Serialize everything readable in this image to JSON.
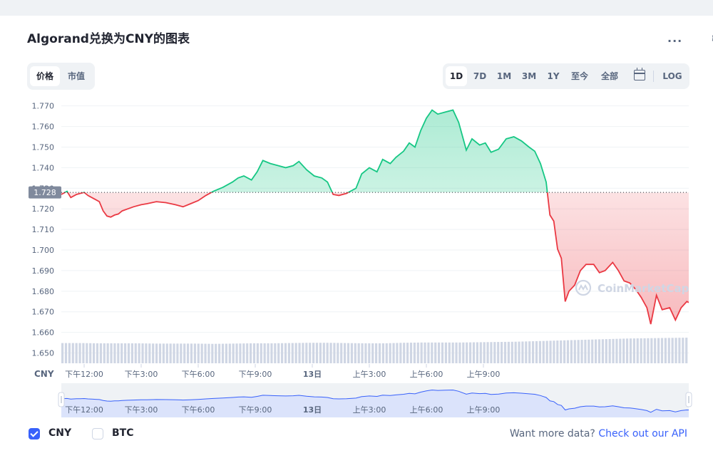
{
  "header": {
    "title": "Algorand兑换为CNY的图表",
    "more_label": "..."
  },
  "toggle": {
    "price_label": "价格",
    "mcap_label": "市值"
  },
  "ranges": [
    "1D",
    "7D",
    "1M",
    "3M",
    "1Y",
    "至今",
    "全部"
  ],
  "log_label": "LOG",
  "watermark": "CoinMarketCap",
  "colors": {
    "up": "#16c784",
    "down": "#ea3943",
    "accent": "#3861fb",
    "volume": "#cfd6e4"
  },
  "chart_data": {
    "type": "line",
    "currency_label": "CNY",
    "reference_value": "1.728",
    "y_ticks": [
      "1.770",
      "1.760",
      "1.750",
      "1.740",
      "1.730",
      "1.720",
      "1.710",
      "1.700",
      "1.690",
      "1.680",
      "1.670",
      "1.660",
      "1.650"
    ],
    "ylim": [
      1.645,
      1.773
    ],
    "x_ticks": [
      "下午12:00",
      "下午3:00",
      "下午6:00",
      "下午9:00",
      "13日",
      "上午3:00",
      "上午6:00",
      "上午9:00"
    ],
    "price_points": [
      [
        0,
        1.727
      ],
      [
        0.3,
        1.7285
      ],
      [
        0.5,
        1.7255
      ],
      [
        0.8,
        1.727
      ],
      [
        1,
        1.7275
      ],
      [
        1.2,
        1.728
      ],
      [
        1.4,
        1.7265
      ],
      [
        1.6,
        1.7255
      ],
      [
        1.8,
        1.7245
      ],
      [
        2,
        1.7235
      ],
      [
        2.2,
        1.719
      ],
      [
        2.4,
        1.7165
      ],
      [
        2.6,
        1.716
      ],
      [
        2.8,
        1.717
      ],
      [
        3,
        1.7175
      ],
      [
        3.2,
        1.719
      ],
      [
        3.5,
        1.72
      ],
      [
        3.8,
        1.721
      ],
      [
        4.2,
        1.722
      ],
      [
        4.5,
        1.7225
      ],
      [
        5,
        1.7235
      ],
      [
        5.5,
        1.723
      ],
      [
        6,
        1.722
      ],
      [
        6.4,
        1.721
      ],
      [
        6.8,
        1.7225
      ],
      [
        7.2,
        1.724
      ],
      [
        7.6,
        1.7265
      ],
      [
        8,
        1.7285
      ],
      [
        8.5,
        1.7305
      ],
      [
        9,
        1.733
      ],
      [
        9.3,
        1.735
      ],
      [
        9.6,
        1.736
      ],
      [
        10,
        1.734
      ],
      [
        10.3,
        1.738
      ],
      [
        10.6,
        1.7435
      ],
      [
        11,
        1.742
      ],
      [
        11.4,
        1.741
      ],
      [
        11.8,
        1.74
      ],
      [
        12.2,
        1.741
      ],
      [
        12.5,
        1.743
      ],
      [
        12.9,
        1.739
      ],
      [
        13.3,
        1.736
      ],
      [
        13.7,
        1.735
      ],
      [
        14,
        1.733
      ],
      [
        14.3,
        1.727
      ],
      [
        14.6,
        1.7265
      ],
      [
        15,
        1.7275
      ],
      [
        15.5,
        1.73
      ],
      [
        15.8,
        1.737
      ],
      [
        16.2,
        1.74
      ],
      [
        16.6,
        1.738
      ],
      [
        16.9,
        1.744
      ],
      [
        17.3,
        1.742
      ],
      [
        17.6,
        1.745
      ],
      [
        18,
        1.748
      ],
      [
        18.3,
        1.752
      ],
      [
        18.6,
        1.75
      ],
      [
        18.9,
        1.758
      ],
      [
        19.2,
        1.764
      ],
      [
        19.5,
        1.768
      ],
      [
        19.8,
        1.766
      ],
      [
        20.2,
        1.767
      ],
      [
        20.6,
        1.768
      ],
      [
        20.9,
        1.762
      ],
      [
        21.3,
        1.7485
      ],
      [
        21.6,
        1.754
      ],
      [
        22,
        1.751
      ],
      [
        22.3,
        1.752
      ],
      [
        22.6,
        1.7475
      ],
      [
        23,
        1.749
      ],
      [
        23.4,
        1.754
      ],
      [
        23.8,
        1.755
      ],
      [
        24.2,
        1.753
      ],
      [
        24.6,
        1.75
      ],
      [
        24.9,
        1.748
      ],
      [
        25.2,
        1.742
      ],
      [
        25.5,
        1.733
      ],
      [
        25.7,
        1.717
      ],
      [
        25.9,
        1.714
      ],
      [
        26.1,
        1.7005
      ],
      [
        26.3,
        1.696
      ],
      [
        26.5,
        1.675
      ],
      [
        26.7,
        1.68
      ],
      [
        27,
        1.683
      ],
      [
        27.3,
        1.69
      ],
      [
        27.6,
        1.693
      ],
      [
        28,
        1.693
      ],
      [
        28.3,
        1.689
      ],
      [
        28.6,
        1.69
      ],
      [
        29,
        1.694
      ],
      [
        29.3,
        1.69
      ],
      [
        29.6,
        1.685
      ],
      [
        29.9,
        1.684
      ],
      [
        30.2,
        1.681
      ],
      [
        30.5,
        1.677
      ],
      [
        30.8,
        1.672
      ],
      [
        31,
        1.664
      ],
      [
        31.3,
        1.678
      ],
      [
        31.6,
        1.671
      ],
      [
        32,
        1.672
      ],
      [
        32.3,
        1.666
      ],
      [
        32.6,
        1.672
      ],
      [
        32.9,
        1.675
      ],
      [
        33,
        1.6745
      ]
    ],
    "x_span_hours": 33,
    "volume_levels": [
      0.75,
      0.75,
      0.74,
      0.74,
      0.74,
      0.73,
      0.73,
      0.73,
      0.72,
      0.73,
      0.74,
      0.74,
      0.75,
      0.76,
      0.76,
      0.75,
      0.74,
      0.74,
      0.76,
      0.77,
      0.77,
      0.77,
      0.78,
      0.79,
      0.8,
      0.82,
      0.84,
      0.86,
      0.88,
      0.9,
      0.92,
      0.93,
      0.94,
      0.95
    ],
    "navigator_x_ticks": [
      "下午12:00",
      "下午3:00",
      "下午6:00",
      "下午9:00",
      "13日",
      "上午3:00",
      "上午6:00",
      "上午9:00"
    ]
  },
  "legend": {
    "cny_label": "CNY",
    "btc_label": "BTC"
  },
  "footer": {
    "prefix": "Want more data?",
    "link": "Check out our API"
  }
}
